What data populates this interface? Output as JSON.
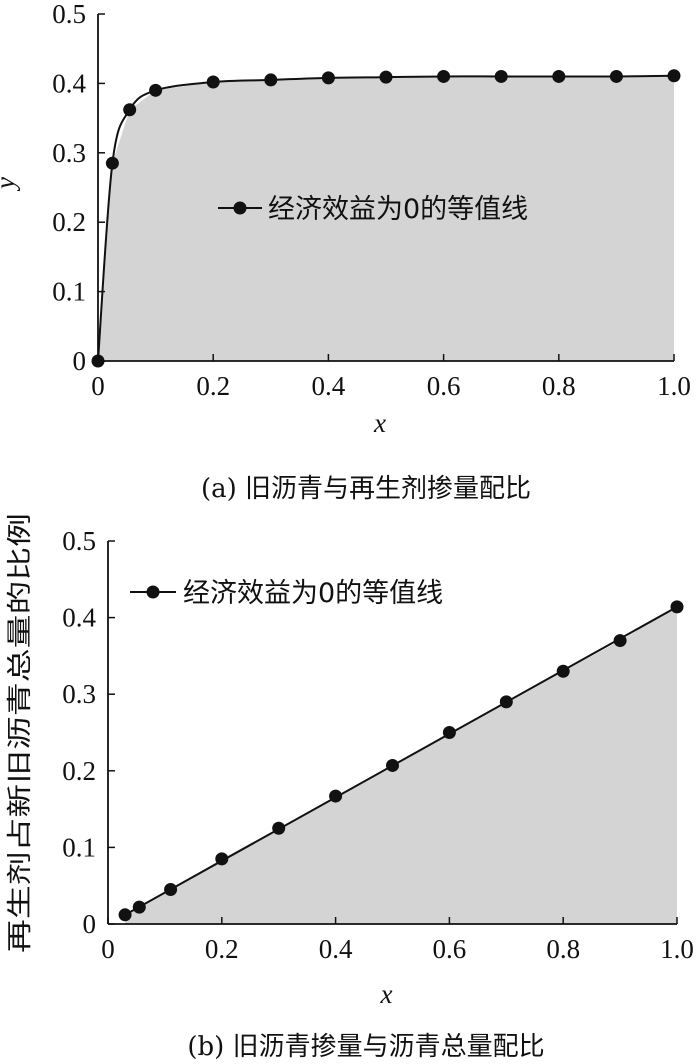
{
  "chart_data": [
    {
      "type": "area",
      "caption": "(a) 旧沥青与再生剂掺量配比",
      "xlabel": "x",
      "ylabel": "y",
      "xlim": [
        0,
        1.0
      ],
      "ylim": [
        0,
        0.5
      ],
      "x_ticks": [
        "0",
        "0.2",
        "0.4",
        "0.6",
        "0.8",
        "1.0"
      ],
      "y_ticks": [
        "0",
        "0.1",
        "0.2",
        "0.3",
        "0.4",
        "0.5"
      ],
      "legend_position": "center",
      "fill_color": "#d4d4d4",
      "line_color": "#111111",
      "series": [
        {
          "name": "经济效益为0的等值线",
          "x": [
            0,
            0.025,
            0.055,
            0.1,
            0.2,
            0.3,
            0.4,
            0.5,
            0.6,
            0.7,
            0.8,
            0.9,
            1.0
          ],
          "y": [
            0,
            0.285,
            0.362,
            0.39,
            0.402,
            0.405,
            0.408,
            0.409,
            0.41,
            0.41,
            0.41,
            0.41,
            0.411
          ]
        }
      ]
    },
    {
      "type": "area",
      "caption": "(b) 旧沥青掺量与沥青总量配比",
      "xlabel": "x",
      "ylabel": "再生剂占新旧沥青总量的比例",
      "xlim": [
        0,
        1.0
      ],
      "ylim": [
        0,
        0.5
      ],
      "x_ticks": [
        "0",
        "0.2",
        "0.4",
        "0.6",
        "0.8",
        "1.0"
      ],
      "y_ticks": [
        "0",
        "0.1",
        "0.2",
        "0.3",
        "0.4",
        "0.5"
      ],
      "legend_position": "top-left",
      "fill_color": "#d4d4d4",
      "line_color": "#111111",
      "series": [
        {
          "name": "经济效益为0的等值线",
          "x": [
            0.03,
            0.055,
            0.11,
            0.2,
            0.3,
            0.4,
            0.5,
            0.6,
            0.7,
            0.8,
            0.9,
            1.0
          ],
          "y": [
            0.012,
            0.022,
            0.045,
            0.085,
            0.125,
            0.167,
            0.207,
            0.25,
            0.29,
            0.33,
            0.37,
            0.414
          ]
        }
      ]
    }
  ]
}
